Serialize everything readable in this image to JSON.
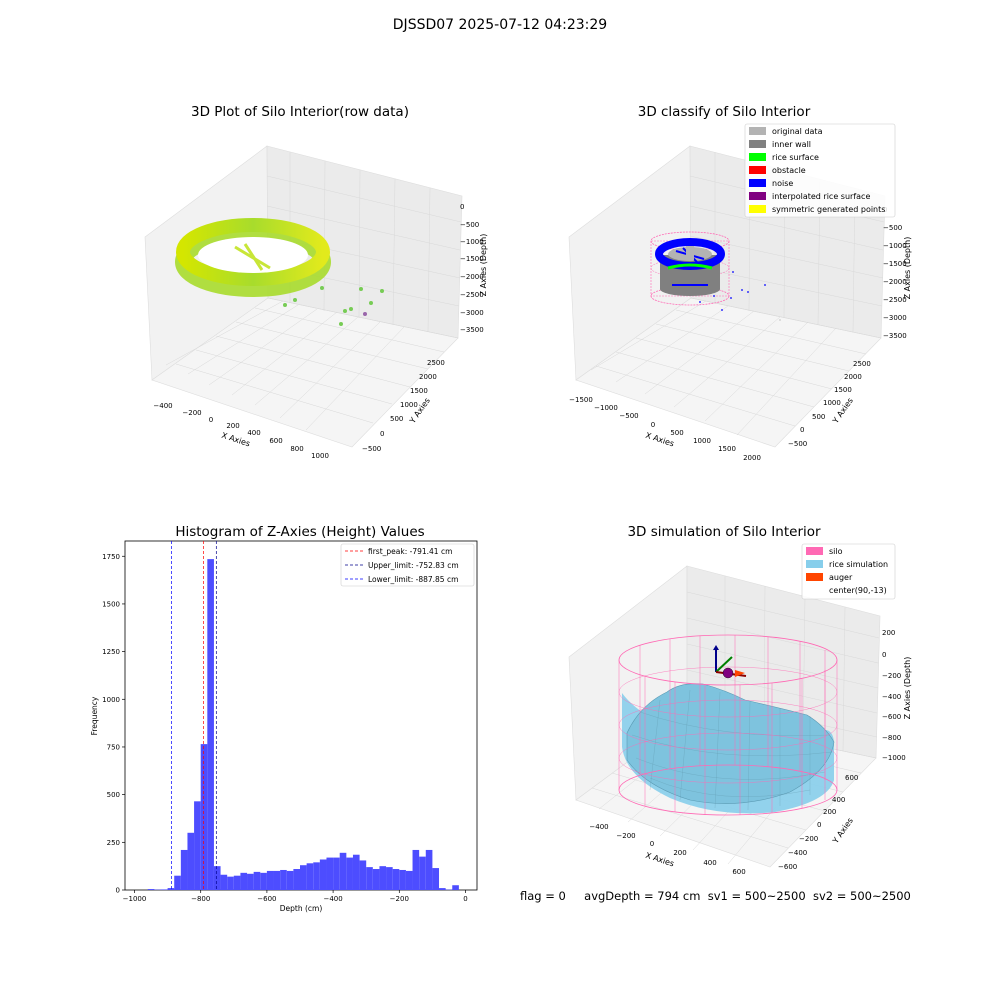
{
  "suptitle": "DJSSD07 2025-07-12 04:23:29",
  "footer": {
    "flag": "flag = 0",
    "avgDepth": "avgDepth = 794 cm",
    "sv1": "sv1 = 500~2500",
    "sv2": "sv2 = 500~2500"
  },
  "colors": {
    "original": "#b3b3b3",
    "inner_wall": "#808080",
    "rice_surface": "#00ff00",
    "obstacle": "#ff0000",
    "noise": "#0000ff",
    "interpolated": "#800080",
    "symmetric": "#ffff00",
    "hist_bar": "#4d4dff",
    "silo": "#ff69b4",
    "rice_sim": "#87ceeb",
    "auger": "#ff4500"
  },
  "chart_data": [
    {
      "type": "scatter",
      "title": "3D Plot of Silo Interior(row data)",
      "xlabel": "X Axies",
      "ylabel": "Y Axies",
      "zlabel": "Z Axies (Depth)",
      "x_ticks": [
        "−400",
        "−200",
        "0",
        "200",
        "400",
        "600",
        "800",
        "1000"
      ],
      "y_ticks": [
        "−500",
        "0",
        "500",
        "1000",
        "1500",
        "2000",
        "2500"
      ],
      "z_ticks": [
        "0",
        "−500",
        "−1000",
        "−1500",
        "−2000",
        "−2500",
        "−3000",
        "−3500"
      ]
    },
    {
      "type": "scatter",
      "title": "3D classify of Silo Interior",
      "xlabel": "X Axies",
      "ylabel": "Y Axies",
      "zlabel": "Z Axies (Depth)",
      "x_ticks": [
        "−1500",
        "−1000",
        "−500",
        "0",
        "500",
        "1000",
        "1500",
        "2000"
      ],
      "y_ticks": [
        "−500",
        "0",
        "500",
        "1000",
        "1500",
        "2000",
        "2500"
      ],
      "z_ticks": [
        "0",
        "−500",
        "−1000",
        "−1500",
        "−2000",
        "−2500",
        "−3000",
        "−3500"
      ],
      "legend_position": "top-right",
      "legend": [
        "original data",
        "inner wall",
        "rice surface",
        "obstacle",
        "noise",
        "interpolated rice surface",
        "symmetric generated points"
      ]
    },
    {
      "type": "bar",
      "title": "Histogram of Z-Axies (Height) Values",
      "xlabel": "Depth (cm)",
      "ylabel": "Frequency",
      "xlim": [
        -1000,
        0
      ],
      "ylim": [
        0,
        1830
      ],
      "x_ticks": [
        -1000,
        -800,
        -600,
        -400,
        -200,
        0
      ],
      "x_tick_labels": [
        "−1000",
        "−800",
        "−600",
        "−400",
        "−200",
        "0"
      ],
      "y_ticks": [
        0,
        250,
        500,
        750,
        1000,
        1250,
        1500,
        1750
      ],
      "bin_width": 20,
      "bin_starts": [
        -960,
        -940,
        -920,
        -900,
        -880,
        -860,
        -840,
        -820,
        -800,
        -780,
        -760,
        -740,
        -720,
        -700,
        -680,
        -660,
        -640,
        -620,
        -600,
        -580,
        -560,
        -540,
        -520,
        -500,
        -480,
        -460,
        -440,
        -420,
        -400,
        -380,
        -360,
        -340,
        -320,
        -300,
        -280,
        -260,
        -240,
        -220,
        -200,
        -180,
        -160,
        -140,
        -120,
        -100,
        -80,
        -60,
        -40,
        -20
      ],
      "values": [
        5,
        2,
        3,
        10,
        75,
        210,
        300,
        465,
        765,
        1735,
        125,
        80,
        70,
        75,
        90,
        85,
        95,
        90,
        100,
        100,
        105,
        100,
        110,
        130,
        140,
        145,
        160,
        170,
        170,
        195,
        170,
        185,
        155,
        120,
        110,
        125,
        120,
        110,
        105,
        100,
        210,
        175,
        210,
        115,
        10,
        2,
        25,
        0
      ],
      "vlines": [
        {
          "label": "first_peak: -791.41 cm",
          "x": -791.41,
          "color": "#ff0000"
        },
        {
          "label": "Upper_limit: -752.83 cm",
          "x": -752.83,
          "color": "#00008b"
        },
        {
          "label": "Lower_limit: -887.85 cm",
          "x": -887.85,
          "color": "#0000ff"
        }
      ],
      "legend_position": "top-right"
    },
    {
      "type": "scatter",
      "title": "3D simulation of Silo Interior",
      "xlabel": "X Axies",
      "ylabel": "Y Axies",
      "zlabel": "Z Axies (Depth)",
      "x_ticks": [
        "−400",
        "−200",
        "0",
        "200",
        "400",
        "600"
      ],
      "y_ticks": [
        "−600",
        "−400",
        "−200",
        "0",
        "200",
        "400",
        "600"
      ],
      "z_ticks": [
        "200",
        "0",
        "−200",
        "−400",
        "−600",
        "−800",
        "−1000"
      ],
      "legend_position": "top-right",
      "legend": [
        "silo",
        "rice simulation",
        "auger",
        "center(90,-13)"
      ]
    }
  ]
}
